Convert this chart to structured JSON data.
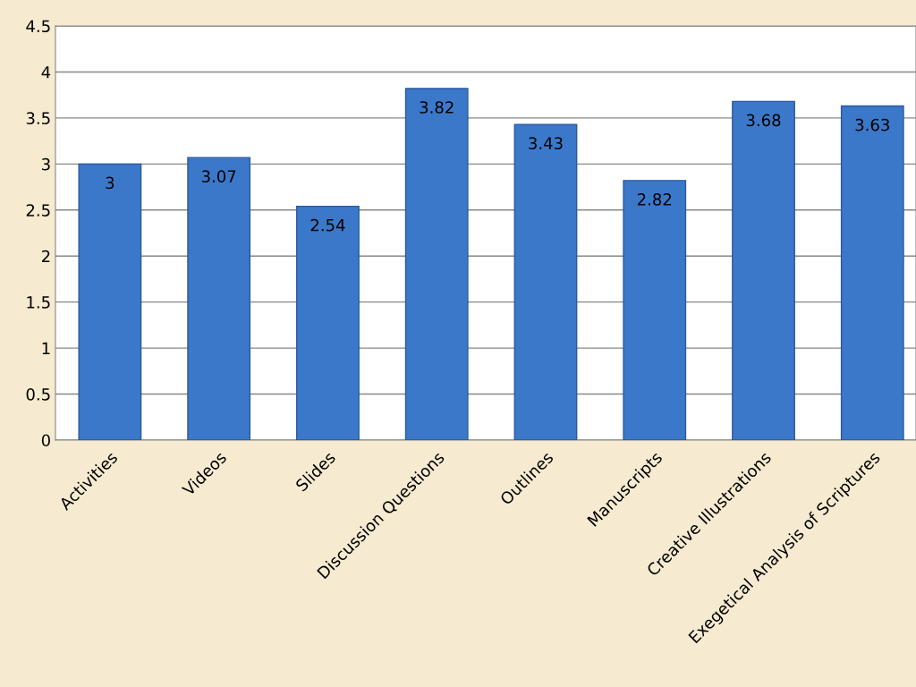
{
  "chart_data": {
    "type": "bar",
    "categories": [
      "Activities",
      "Videos",
      "Slides",
      "Discussion Questions",
      "Outlines",
      "Manuscripts",
      "Creative Illustrations",
      "Exegetical Analysis of Scriptures"
    ],
    "values": [
      3,
      3.07,
      2.54,
      3.82,
      3.43,
      2.82,
      3.68,
      3.63
    ],
    "color": "#3b78c9",
    "ylim": [
      0,
      4.5
    ],
    "yticks": [
      0,
      0.5,
      1,
      1.5,
      2,
      2.5,
      3,
      3.5,
      4,
      4.5
    ],
    "grid": "y",
    "legend": false,
    "data_labels": true
  }
}
